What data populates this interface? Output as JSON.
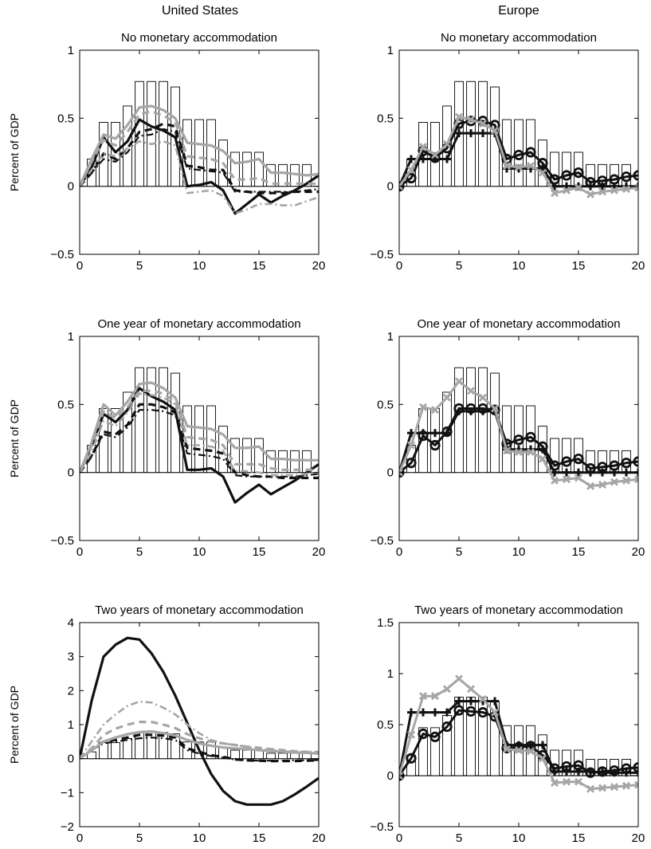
{
  "figure": {
    "column_titles": [
      "United States",
      "Europe"
    ]
  },
  "chart_data": [
    {
      "type": "line",
      "column": 0,
      "row": 0,
      "title": "No monetary accommodation",
      "ylabel": "Percent of GDP",
      "xlim": [
        0,
        20
      ],
      "ylim": [
        -0.5,
        1
      ],
      "xticks": [
        "0",
        "5",
        "10",
        "15",
        "20"
      ],
      "yticks": [
        "−0.5",
        "0",
        "0.5",
        "1"
      ],
      "bars": [
        0,
        0.2,
        0.47,
        0.47,
        0.59,
        0.77,
        0.77,
        0.77,
        0.73,
        0.49,
        0.49,
        0.49,
        0.34,
        0.25,
        0.25,
        0.25,
        0.16,
        0.16,
        0.16,
        0.16,
        0
      ],
      "series": [
        {
          "style": "black-solid",
          "values": [
            0,
            0.14,
            0.36,
            0.25,
            0.33,
            0.49,
            0.44,
            0.41,
            0.36,
            0.0,
            0.01,
            0.03,
            -0.03,
            -0.2,
            -0.13,
            -0.06,
            -0.12,
            -0.07,
            -0.03,
            0.02,
            0.08
          ]
        },
        {
          "style": "black-dashed",
          "values": [
            0,
            0.1,
            0.24,
            0.2,
            0.28,
            0.4,
            0.42,
            0.46,
            0.44,
            0.15,
            0.14,
            0.12,
            0.12,
            -0.03,
            -0.04,
            -0.05,
            -0.05,
            -0.05,
            -0.04,
            -0.04,
            -0.04
          ]
        },
        {
          "style": "black-dashdot",
          "values": [
            0,
            0.1,
            0.2,
            0.18,
            0.25,
            0.37,
            0.38,
            0.42,
            0.4,
            0.13,
            0.12,
            0.11,
            0.1,
            -0.04,
            -0.04,
            -0.04,
            -0.04,
            -0.04,
            -0.04,
            -0.03,
            -0.02
          ]
        },
        {
          "style": "gray-solid",
          "values": [
            0,
            0.2,
            0.38,
            0.35,
            0.45,
            0.58,
            0.59,
            0.56,
            0.5,
            0.32,
            0.31,
            0.3,
            0.26,
            0.17,
            0.18,
            0.2,
            0.1,
            0.1,
            0.09,
            0.08,
            0.09
          ]
        },
        {
          "style": "gray-dashed",
          "values": [
            0,
            0.18,
            0.34,
            0.3,
            0.4,
            0.53,
            0.55,
            0.52,
            0.47,
            0.22,
            0.21,
            0.2,
            0.17,
            0.05,
            0.05,
            0.06,
            0.02,
            0.02,
            0.02,
            0.02,
            0.02
          ]
        },
        {
          "style": "gray-dashdot",
          "values": [
            0,
            0.12,
            0.24,
            0.22,
            0.28,
            0.33,
            0.31,
            0.33,
            0.3,
            -0.05,
            -0.04,
            -0.03,
            -0.07,
            -0.2,
            -0.17,
            -0.13,
            -0.13,
            -0.14,
            -0.14,
            -0.11,
            -0.08
          ]
        }
      ]
    },
    {
      "type": "line",
      "column": 1,
      "row": 0,
      "title": "No monetary accommodation",
      "ylabel": "",
      "xlim": [
        0,
        20
      ],
      "ylim": [
        -0.5,
        1
      ],
      "xticks": [
        "0",
        "5",
        "10",
        "15",
        "20"
      ],
      "yticks": [
        "−0.5",
        "0",
        "0.5",
        "1"
      ],
      "bars": [
        0,
        0.2,
        0.47,
        0.47,
        0.59,
        0.77,
        0.77,
        0.77,
        0.73,
        0.49,
        0.49,
        0.49,
        0.34,
        0.25,
        0.25,
        0.25,
        0.16,
        0.16,
        0.16,
        0.16,
        0
      ],
      "series": [
        {
          "style": "black-circles",
          "values": [
            0,
            0.06,
            0.26,
            0.21,
            0.28,
            0.46,
            0.48,
            0.48,
            0.45,
            0.2,
            0.23,
            0.25,
            0.17,
            0.05,
            0.08,
            0.1,
            0.03,
            0.04,
            0.05,
            0.07,
            0.08
          ]
        },
        {
          "style": "black-plus",
          "values": [
            0,
            0.2,
            0.2,
            0.2,
            0.2,
            0.39,
            0.39,
            0.39,
            0.39,
            0.13,
            0.13,
            0.13,
            0.13,
            0,
            0,
            0,
            0,
            0,
            0,
            0,
            0
          ]
        },
        {
          "style": "gray-x",
          "values": [
            0,
            0.12,
            0.29,
            0.23,
            0.31,
            0.51,
            0.49,
            0.46,
            0.41,
            0.15,
            0.14,
            0.15,
            0.1,
            -0.05,
            -0.03,
            -0.01,
            -0.06,
            -0.04,
            -0.03,
            -0.02,
            -0.01
          ]
        }
      ]
    },
    {
      "type": "line",
      "column": 0,
      "row": 1,
      "title": "One year of monetary accommodation",
      "ylabel": "Percent of GDP",
      "xlim": [
        0,
        20
      ],
      "ylim": [
        -0.5,
        1
      ],
      "xticks": [
        "0",
        "5",
        "10",
        "15",
        "20"
      ],
      "yticks": [
        "−0.5",
        "0",
        "0.5",
        "1"
      ],
      "bars": [
        0,
        0.2,
        0.47,
        0.47,
        0.59,
        0.77,
        0.77,
        0.77,
        0.73,
        0.49,
        0.49,
        0.49,
        0.34,
        0.25,
        0.25,
        0.25,
        0.16,
        0.16,
        0.16,
        0.16,
        0
      ],
      "series": [
        {
          "style": "black-solid",
          "values": [
            0,
            0.2,
            0.43,
            0.37,
            0.46,
            0.62,
            0.56,
            0.52,
            0.46,
            0.02,
            0.02,
            0.03,
            -0.03,
            -0.22,
            -0.15,
            -0.09,
            -0.16,
            -0.11,
            -0.06,
            0.0,
            0.06
          ]
        },
        {
          "style": "black-dashed",
          "values": [
            0,
            0.12,
            0.3,
            0.28,
            0.35,
            0.5,
            0.5,
            0.48,
            0.44,
            0.18,
            0.17,
            0.16,
            0.14,
            0.0,
            -0.02,
            -0.03,
            -0.03,
            -0.04,
            -0.04,
            -0.04,
            -0.04
          ]
        },
        {
          "style": "black-dashdot",
          "values": [
            0,
            0.12,
            0.28,
            0.26,
            0.33,
            0.46,
            0.46,
            0.45,
            0.42,
            0.14,
            0.13,
            0.12,
            0.1,
            -0.02,
            -0.03,
            -0.03,
            -0.03,
            -0.03,
            -0.03,
            -0.02,
            -0.01
          ]
        },
        {
          "style": "gray-solid",
          "values": [
            0,
            0.22,
            0.5,
            0.42,
            0.52,
            0.65,
            0.66,
            0.62,
            0.55,
            0.34,
            0.33,
            0.32,
            0.28,
            0.18,
            0.18,
            0.19,
            0.1,
            0.1,
            0.09,
            0.09,
            0.09
          ]
        },
        {
          "style": "gray-dashed",
          "values": [
            0,
            0.2,
            0.45,
            0.4,
            0.48,
            0.6,
            0.6,
            0.58,
            0.52,
            0.26,
            0.25,
            0.24,
            0.2,
            0.06,
            0.06,
            0.06,
            0.03,
            0.02,
            0.02,
            0.02,
            0.02
          ]
        },
        {
          "style": "gray-dashdot",
          "values": [
            0,
            0.15,
            0.38,
            0.34,
            0.44,
            0.58,
            0.57,
            0.55,
            0.5,
            0.2,
            0.2,
            0.19,
            0.16,
            0.01,
            0.01,
            0.0,
            -0.02,
            -0.02,
            -0.02,
            -0.01,
            0.0
          ]
        }
      ]
    },
    {
      "type": "line",
      "column": 1,
      "row": 1,
      "title": "One year of monetary accommodation",
      "ylabel": "",
      "xlim": [
        0,
        20
      ],
      "ylim": [
        -0.5,
        1
      ],
      "xticks": [
        "0",
        "5",
        "10",
        "15",
        "20"
      ],
      "yticks": [
        "−0.5",
        "0",
        "0.5",
        "1"
      ],
      "bars": [
        0,
        0.2,
        0.47,
        0.47,
        0.59,
        0.77,
        0.77,
        0.77,
        0.73,
        0.49,
        0.49,
        0.49,
        0.34,
        0.25,
        0.25,
        0.25,
        0.16,
        0.16,
        0.16,
        0.16,
        0
      ],
      "series": [
        {
          "style": "black-circles",
          "values": [
            0,
            0.07,
            0.27,
            0.2,
            0.3,
            0.47,
            0.47,
            0.47,
            0.46,
            0.21,
            0.24,
            0.26,
            0.19,
            0.05,
            0.08,
            0.1,
            0.03,
            0.04,
            0.05,
            0.07,
            0.08
          ]
        },
        {
          "style": "black-plus",
          "values": [
            0,
            0.29,
            0.29,
            0.29,
            0.29,
            0.45,
            0.45,
            0.45,
            0.45,
            0.17,
            0.17,
            0.17,
            0.17,
            0,
            0,
            0,
            0,
            0,
            0,
            0,
            0
          ]
        },
        {
          "style": "gray-x",
          "values": [
            0,
            0.2,
            0.48,
            0.46,
            0.55,
            0.67,
            0.6,
            0.55,
            0.47,
            0.16,
            0.15,
            0.15,
            0.1,
            -0.06,
            -0.05,
            -0.04,
            -0.1,
            -0.09,
            -0.07,
            -0.06,
            -0.05
          ]
        }
      ]
    },
    {
      "type": "line",
      "column": 0,
      "row": 2,
      "title": "Two years of monetary accommodation",
      "ylabel": "Percent of GDP",
      "xlim": [
        0,
        20
      ],
      "ylim": [
        -2,
        4
      ],
      "xticks": [
        "0",
        "5",
        "10",
        "15",
        "20"
      ],
      "yticks": [
        "−2",
        "−1",
        "0",
        "1",
        "2",
        "3",
        "4"
      ],
      "bars": [
        0,
        0.2,
        0.47,
        0.47,
        0.59,
        0.77,
        0.77,
        0.77,
        0.73,
        0.49,
        0.49,
        0.49,
        0.34,
        0.25,
        0.25,
        0.25,
        0.16,
        0.16,
        0.16,
        0.16,
        0
      ],
      "series": [
        {
          "style": "black-solid",
          "values": [
            0,
            1.7,
            3.0,
            3.35,
            3.55,
            3.5,
            3.1,
            2.55,
            1.85,
            1.05,
            0.25,
            -0.45,
            -0.95,
            -1.25,
            -1.35,
            -1.35,
            -1.35,
            -1.25,
            -1.05,
            -0.82,
            -0.57
          ]
        },
        {
          "style": "black-dashed",
          "values": [
            0,
            0.3,
            0.5,
            0.55,
            0.62,
            0.7,
            0.7,
            0.68,
            0.62,
            0.3,
            0.2,
            0.1,
            0.05,
            -0.02,
            -0.05,
            -0.06,
            -0.07,
            -0.07,
            -0.07,
            -0.06,
            -0.05
          ]
        },
        {
          "style": "black-dashdot",
          "values": [
            0,
            0.25,
            0.45,
            0.5,
            0.55,
            0.6,
            0.62,
            0.6,
            0.55,
            0.25,
            0.15,
            0.08,
            0.03,
            -0.03,
            -0.05,
            -0.06,
            -0.06,
            -0.06,
            -0.05,
            -0.05,
            -0.04
          ]
        },
        {
          "style": "gray-solid",
          "values": [
            0,
            0.25,
            0.5,
            0.62,
            0.72,
            0.78,
            0.8,
            0.75,
            0.68,
            0.55,
            0.45,
            0.38,
            0.33,
            0.3,
            0.28,
            0.25,
            0.22,
            0.2,
            0.18,
            0.17,
            0.15
          ]
        },
        {
          "style": "gray-dashed",
          "values": [
            0,
            0.3,
            0.7,
            0.88,
            1.0,
            1.08,
            1.08,
            1.0,
            0.9,
            0.72,
            0.6,
            0.5,
            0.45,
            0.4,
            0.35,
            0.32,
            0.28,
            0.25,
            0.22,
            0.2,
            0.19
          ]
        },
        {
          "style": "gray-dashdot",
          "values": [
            0,
            0.5,
            1.0,
            1.3,
            1.55,
            1.68,
            1.65,
            1.5,
            1.3,
            1.0,
            0.75,
            0.55,
            0.45,
            0.4,
            0.35,
            0.3,
            0.25,
            0.22,
            0.2,
            0.2,
            0.2
          ]
        }
      ]
    },
    {
      "type": "line",
      "column": 1,
      "row": 2,
      "title": "Two years of monetary accommodation",
      "ylabel": "",
      "xlim": [
        0,
        20
      ],
      "ylim": [
        -0.5,
        1.5
      ],
      "xticks": [
        "0",
        "5",
        "10",
        "15",
        "20"
      ],
      "yticks": [
        "−0.5",
        "0",
        "0.5",
        "1",
        "1.5"
      ],
      "bars": [
        0,
        0.2,
        0.47,
        0.47,
        0.59,
        0.77,
        0.77,
        0.77,
        0.73,
        0.49,
        0.49,
        0.49,
        0.4,
        0.25,
        0.25,
        0.25,
        0.16,
        0.16,
        0.16,
        0.16,
        0
      ],
      "series": [
        {
          "style": "black-circles",
          "values": [
            0,
            0.17,
            0.41,
            0.38,
            0.48,
            0.64,
            0.63,
            0.62,
            0.58,
            0.27,
            0.28,
            0.29,
            0.2,
            0.07,
            0.09,
            0.1,
            0.03,
            0.04,
            0.05,
            0.07,
            0.08
          ]
        },
        {
          "style": "black-plus",
          "values": [
            0,
            0.62,
            0.62,
            0.62,
            0.62,
            0.73,
            0.73,
            0.73,
            0.73,
            0.3,
            0.3,
            0.3,
            0.3,
            0.04,
            0.04,
            0.04,
            0.04,
            0.03,
            0.03,
            0.03,
            0.03
          ]
        },
        {
          "style": "gray-x",
          "values": [
            0,
            0.4,
            0.78,
            0.78,
            0.85,
            0.95,
            0.85,
            0.75,
            0.62,
            0.26,
            0.25,
            0.24,
            0.17,
            -0.07,
            -0.06,
            -0.06,
            -0.13,
            -0.12,
            -0.11,
            -0.1,
            -0.09
          ]
        }
      ]
    }
  ]
}
